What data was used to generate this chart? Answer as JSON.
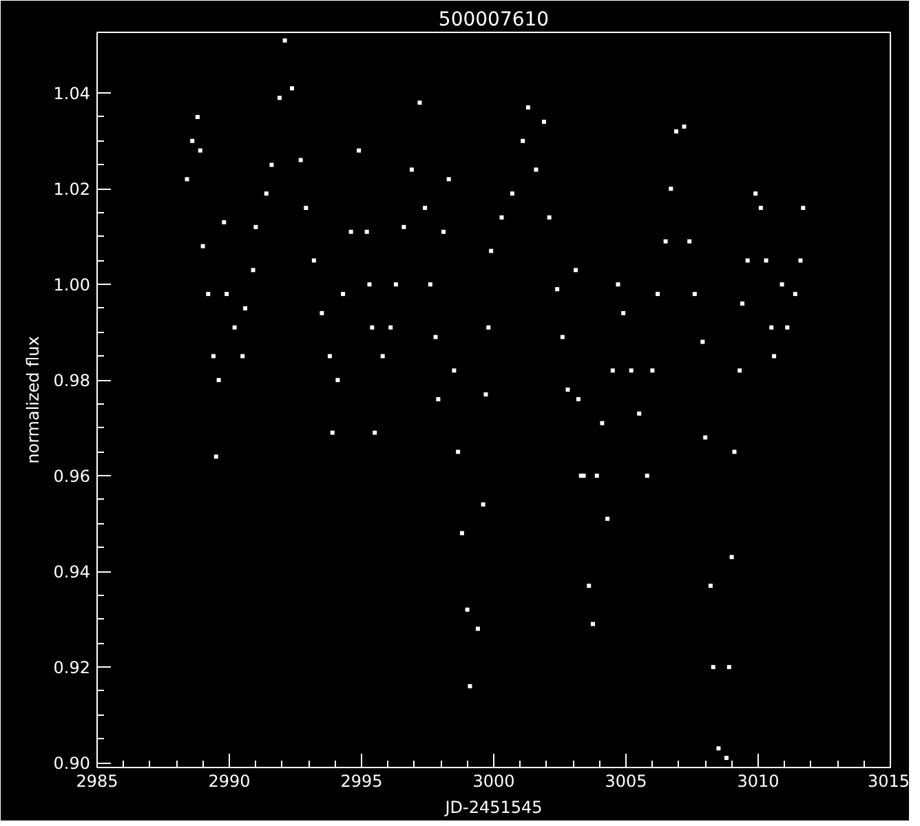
{
  "chart_data": {
    "type": "scatter",
    "title": "500007610",
    "xlabel": "JD-2451545",
    "ylabel": "normalized flux",
    "xlim": [
      2985,
      3015
    ],
    "ylim": [
      0.899,
      1.0527
    ],
    "xticks": [
      2985,
      2990,
      2995,
      3000,
      3005,
      3010,
      3015
    ],
    "yticks": [
      {
        "value": 0.9,
        "label": "0.90"
      },
      {
        "value": 0.92,
        "label": "0.92"
      },
      {
        "value": 0.94,
        "label": "0.94"
      },
      {
        "value": 0.96,
        "label": "0.96"
      },
      {
        "value": 0.98,
        "label": "0.98"
      },
      {
        "value": 1.0,
        "label": "1.00"
      },
      {
        "value": 1.02,
        "label": "1.02"
      },
      {
        "value": 1.04,
        "label": "1.04"
      }
    ],
    "grid": false,
    "marker": "square",
    "series": [
      {
        "color": "#ffffff",
        "x": [
          2988.4,
          2988.6,
          2988.8,
          2988.9,
          2989.0,
          2989.2,
          2989.4,
          2989.5,
          2989.6,
          2989.8,
          2989.9,
          2990.2,
          2990.5,
          2990.6,
          2990.9,
          2991.0,
          2991.4,
          2991.6,
          2991.9,
          2992.1,
          2992.37,
          2992.7,
          2992.9,
          2993.2,
          2993.5,
          2993.8,
          2993.9,
          2994.1,
          2994.3,
          2994.6,
          2994.9,
          2995.2,
          2995.3,
          2995.4,
          2995.5,
          2995.8,
          2996.1,
          2996.3,
          2996.6,
          2996.9,
          2997.2,
          2997.4,
          2997.6,
          2997.8,
          2997.9,
          2998.1,
          2998.3,
          2998.5,
          2998.65,
          2998.8,
          2999.0,
          2999.1,
          2999.4,
          2999.6,
          2999.7,
          2999.8,
          2999.9,
          3000.3,
          3000.7,
          3001.1,
          3001.3,
          3001.6,
          3001.9,
          3002.1,
          3002.4,
          3002.6,
          3002.8,
          3003.1,
          3003.2,
          3003.3,
          3003.4,
          3003.6,
          3003.75,
          3003.9,
          3004.1,
          3004.3,
          3004.5,
          3004.7,
          3004.9,
          3005.2,
          3005.5,
          3005.8,
          3006.0,
          3006.2,
          3006.5,
          3006.7,
          3006.9,
          3007.2,
          3007.4,
          3007.6,
          3007.9,
          3008.0,
          3008.2,
          3008.3,
          3008.5,
          3008.8,
          3008.9,
          3009.0,
          3009.1,
          3009.3,
          3009.4,
          3009.6,
          3009.9,
          3010.1,
          3010.3,
          3010.5,
          3010.6,
          3010.9,
          3011.1,
          3011.4,
          3011.6,
          3011.7
        ],
        "values": [
          1.022,
          1.03,
          1.035,
          1.028,
          1.008,
          0.998,
          0.985,
          0.964,
          0.98,
          1.013,
          0.998,
          0.991,
          0.985,
          0.995,
          1.003,
          1.012,
          1.019,
          1.025,
          1.039,
          1.051,
          1.041,
          1.026,
          1.016,
          1.005,
          0.994,
          0.985,
          0.969,
          0.98,
          0.998,
          1.011,
          1.028,
          1.011,
          1.0,
          0.991,
          0.969,
          0.985,
          0.991,
          1.0,
          1.012,
          1.024,
          1.038,
          1.016,
          1.0,
          0.989,
          0.976,
          1.011,
          1.022,
          0.982,
          0.965,
          0.948,
          0.932,
          0.916,
          0.928,
          0.954,
          0.977,
          0.991,
          1.007,
          1.014,
          1.019,
          1.03,
          1.037,
          1.024,
          1.034,
          1.014,
          0.999,
          0.989,
          0.978,
          1.003,
          0.976,
          0.96,
          0.96,
          0.937,
          0.929,
          0.96,
          0.971,
          0.951,
          0.982,
          1.0,
          0.994,
          0.982,
          0.973,
          0.96,
          0.982,
          0.998,
          1.009,
          1.02,
          1.032,
          1.033,
          1.009,
          0.998,
          0.988,
          0.968,
          0.937,
          0.92,
          0.903,
          0.901,
          0.92,
          0.943,
          0.965,
          0.982,
          0.996,
          1.005,
          1.019,
          1.016,
          1.005,
          0.991,
          0.985,
          1.0,
          0.991,
          0.998,
          1.005,
          1.016
        ]
      }
    ]
  }
}
